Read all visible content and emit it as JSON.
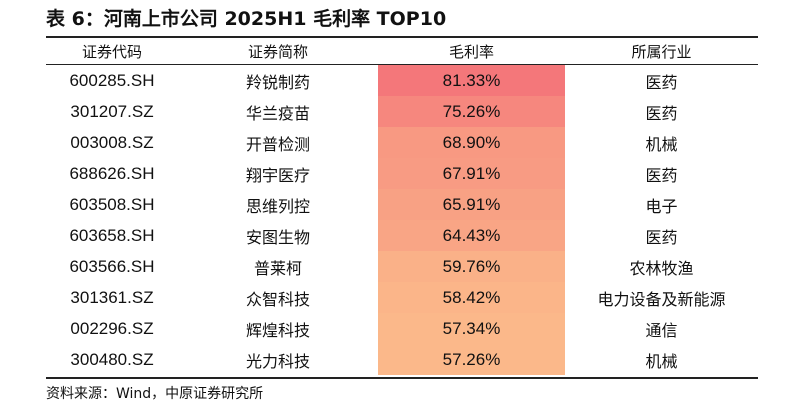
{
  "title": "表 6：河南上市公司 2025H1 毛利率 TOP10",
  "headers": {
    "code": "证券代码",
    "name": "证券简称",
    "margin": "毛利率",
    "industry": "所属行业"
  },
  "rows": [
    {
      "code": "600285.SH",
      "name": "羚锐制药",
      "margin": "81.33%",
      "margin_value": 81.33,
      "industry": "医药"
    },
    {
      "code": "301207.SZ",
      "name": "华兰疫苗",
      "margin": "75.26%",
      "margin_value": 75.26,
      "industry": "医药"
    },
    {
      "code": "003008.SZ",
      "name": "开普检测",
      "margin": "68.90%",
      "margin_value": 68.9,
      "industry": "机械"
    },
    {
      "code": "688626.SH",
      "name": "翔宇医疗",
      "margin": "67.91%",
      "margin_value": 67.91,
      "industry": "医药"
    },
    {
      "code": "603508.SH",
      "name": "思维列控",
      "margin": "65.91%",
      "margin_value": 65.91,
      "industry": "电子"
    },
    {
      "code": "603658.SH",
      "name": "安图生物",
      "margin": "64.43%",
      "margin_value": 64.43,
      "industry": "医药"
    },
    {
      "code": "603566.SH",
      "name": "普莱柯",
      "margin": "59.76%",
      "margin_value": 59.76,
      "industry": "农林牧渔"
    },
    {
      "code": "301361.SZ",
      "name": "众智科技",
      "margin": "58.42%",
      "margin_value": 58.42,
      "industry": "电力设备及新能源"
    },
    {
      "code": "002296.SZ",
      "name": "辉煌科技",
      "margin": "57.34%",
      "margin_value": 57.34,
      "industry": "通信"
    },
    {
      "code": "300480.SZ",
      "name": "光力科技",
      "margin": "57.26%",
      "margin_value": 57.26,
      "industry": "机械"
    }
  ],
  "heatmap_colors": {
    "high": "#f4777a",
    "low": "#fbb88a"
  },
  "source": "资料来源：Wind，中原证券研究所"
}
